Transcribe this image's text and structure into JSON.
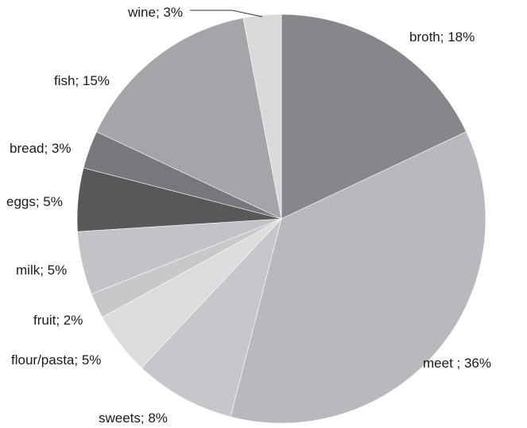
{
  "chart_data": {
    "type": "pie",
    "title": "",
    "slices": [
      {
        "label": "broth; 18%",
        "value": 18,
        "color": "#86878b"
      },
      {
        "label": "meet ; 36%",
        "value": 36,
        "color": "#b8b9bd"
      },
      {
        "label": "sweets; 8%",
        "value": 8,
        "color": "#c6c7ca"
      },
      {
        "label": "flour/pasta; 5%",
        "value": 5,
        "color": "#dcdcde"
      },
      {
        "label": "fruit; 2%",
        "value": 2,
        "color": "#c8c8cb"
      },
      {
        "label": "milk; 5%",
        "value": 5,
        "color": "#c2c3c6"
      },
      {
        "label": "eggs; 5%",
        "value": 5,
        "color": "#58585b"
      },
      {
        "label": "bread; 3%",
        "value": 3,
        "color": "#77787c"
      },
      {
        "label": "fish; 15%",
        "value": 15,
        "color": "#a4a5a9"
      },
      {
        "label": "wine; 3%",
        "value": 3,
        "color": "#dadadc"
      }
    ],
    "start_angle_deg": 0,
    "direction": "clockwise"
  }
}
